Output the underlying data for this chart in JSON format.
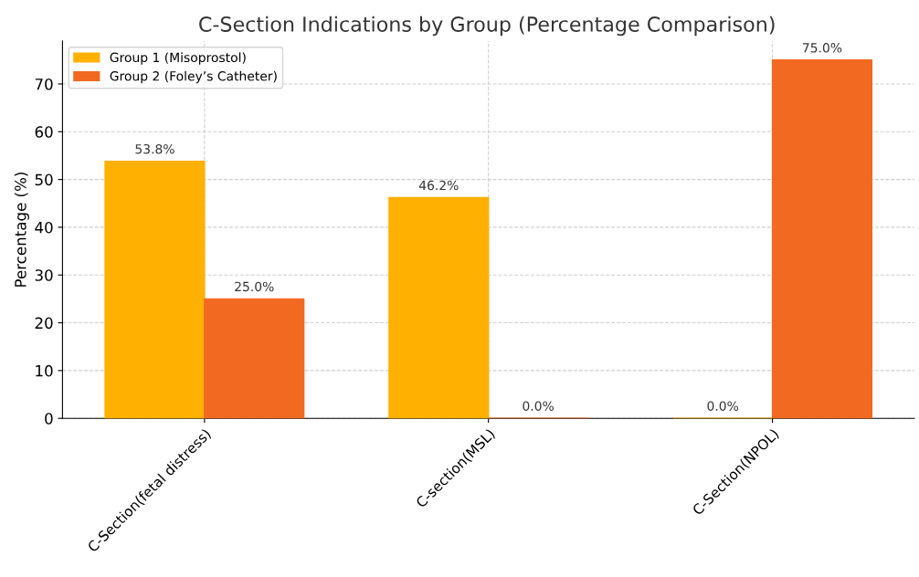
{
  "chart_data": {
    "type": "bar",
    "title": "C-Section Indications by Group (Percentage Comparison)",
    "ylabel": "Percentage (%)",
    "categories": [
      "C-Section(fetal distress)",
      "C-section(MSL)",
      "C-Section(NPOL)"
    ],
    "series": [
      {
        "name": "Group 1 (Misoprostol)",
        "color": "#ffb000",
        "values": [
          53.8,
          46.2,
          0.0
        ],
        "value_labels": [
          "53.8%",
          "46.2%",
          "0.0%"
        ]
      },
      {
        "name": "Group 2 (Foley’s Catheter)",
        "color": "#f26a21",
        "values": [
          25.0,
          0.0,
          75.0
        ],
        "value_labels": [
          "25.0%",
          "0.0%",
          "75.0%"
        ]
      }
    ],
    "ylim": [
      0,
      79
    ],
    "yticks": [
      0,
      10,
      20,
      30,
      40,
      50,
      60,
      70
    ],
    "grid": true,
    "legend": "top left"
  }
}
